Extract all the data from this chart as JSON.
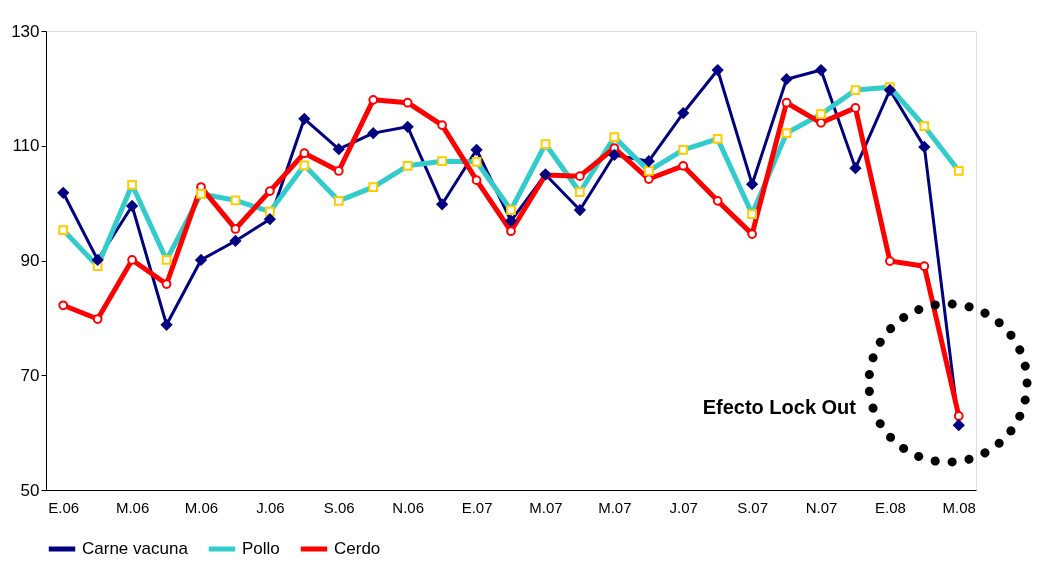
{
  "chart_data": {
    "type": "line",
    "categories": [
      "E.06",
      null,
      "M.06",
      null,
      "M.06",
      null,
      "J.06",
      null,
      "S.06",
      null,
      "N.06",
      null,
      "E.07",
      null,
      "M.07",
      null,
      "M.07",
      null,
      "J.07",
      null,
      "S.07",
      null,
      "N.07",
      null,
      "E.08",
      null,
      "M.08"
    ],
    "series": [
      {
        "name": "Carne vacuna",
        "color": "#000080",
        "marker": "diamond",
        "values": [
          101.8,
          90.1,
          99.5,
          78.8,
          90.1,
          93.4,
          97.2,
          114.7,
          109.4,
          112.2,
          113.3,
          99.8,
          109.3,
          96.9,
          105.0,
          98.8,
          108.4,
          107.3,
          115.7,
          123.2,
          103.3,
          121.6,
          123.2,
          106.1,
          119.7,
          109.8,
          61.3
        ]
      },
      {
        "name": "Pollo",
        "color": "#33cccc",
        "marker": "square",
        "values": [
          95.3,
          89.0,
          103.2,
          90.1,
          101.6,
          100.5,
          98.5,
          106.6,
          100.4,
          102.8,
          106.5,
          107.3,
          107.2,
          98.8,
          110.3,
          101.9,
          111.5,
          105.6,
          109.3,
          111.2,
          98.1,
          112.2,
          115.5,
          119.7,
          120.2,
          113.4,
          105.6
        ]
      },
      {
        "name": "Cerdo",
        "color": "#ff0000",
        "marker": "circle",
        "values": [
          82.2,
          79.8,
          90.1,
          85.9,
          102.8,
          95.5,
          102.1,
          108.7,
          105.6,
          118.0,
          117.5,
          113.6,
          104.0,
          95.1,
          104.9,
          104.7,
          109.6,
          104.2,
          106.5,
          100.4,
          94.6,
          117.5,
          114.0,
          116.6,
          89.9,
          89.0,
          62.9
        ]
      }
    ],
    "ylim": [
      50,
      130
    ],
    "yticks": [
      50,
      70,
      90,
      110,
      130
    ],
    "grid": false,
    "legend": "bottom",
    "annotations": [
      "Efecto Lock Out"
    ]
  }
}
